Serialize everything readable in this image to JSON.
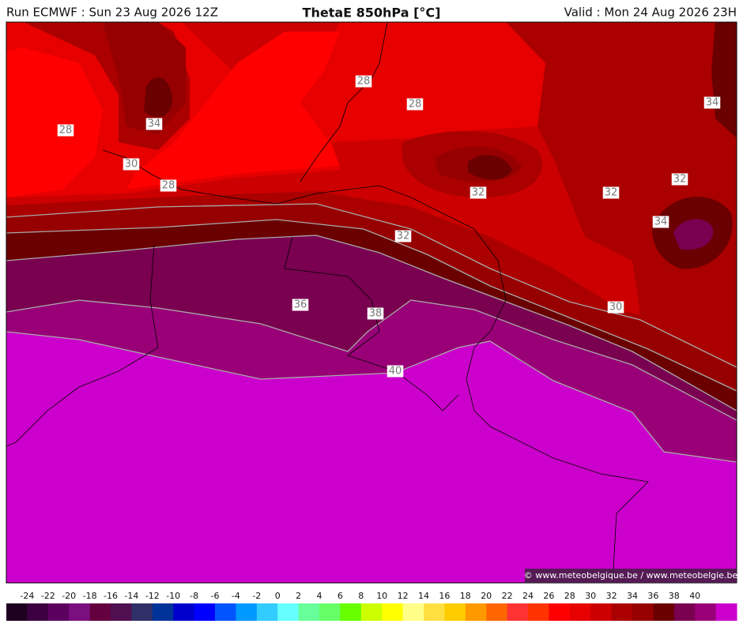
{
  "header": {
    "run": "Run ECMWF : Sun 23 Aug 2026 12Z",
    "title": "ThetaE 850hPa [°C]",
    "valid": "Valid : Mon 24 Aug 2026 23H"
  },
  "map": {
    "contour_labels": [
      28,
      28,
      28,
      34,
      30,
      28,
      32,
      32,
      32,
      34,
      34,
      32,
      30,
      36,
      38,
      40
    ]
  },
  "credit": "© www.meteobelgique.be / www.meteobelgie.be",
  "colorbar": {
    "ticks": [
      -24,
      -22,
      -20,
      -18,
      -16,
      -14,
      -12,
      -10,
      -8,
      -6,
      -4,
      -2,
      0,
      2,
      4,
      6,
      8,
      10,
      12,
      14,
      16,
      18,
      20,
      22,
      24,
      26,
      28,
      30,
      32,
      34,
      36,
      38,
      40
    ],
    "colors": [
      "#1e0020",
      "#3c0040",
      "#5c0060",
      "#7a1080",
      "#640040",
      "#501050",
      "#303068",
      "#003399",
      "#0000cc",
      "#0000ff",
      "#0055ff",
      "#0099ff",
      "#33ccff",
      "#66ffff",
      "#66ff99",
      "#66ff66",
      "#66ff00",
      "#ccff00",
      "#ffff00",
      "#ffff88",
      "#ffe040",
      "#ffcc00",
      "#ff9900",
      "#ff6600",
      "#ff3333",
      "#ff3300",
      "#ff0000",
      "#e60000",
      "#cc0000",
      "#aa0000",
      "#960000",
      "#6a0000",
      "#7a0050",
      "#990077",
      "#cc00cc"
    ]
  }
}
